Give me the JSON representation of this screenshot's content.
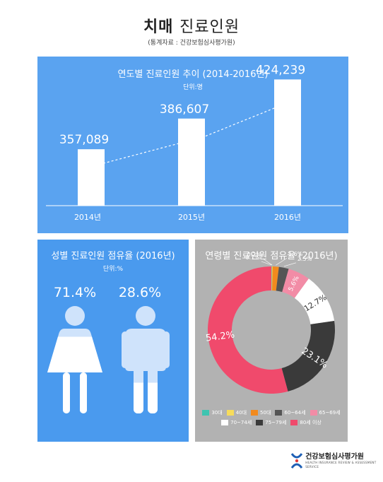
{
  "header": {
    "title_bold": "치매",
    "title_light": "진료인원",
    "source": "(통계자료 : 건강보험심사평가원)"
  },
  "chart_data": [
    {
      "type": "bar",
      "title": "연도별 진료인원 추이 (2014-2016년)",
      "unit": "단위:명",
      "categories": [
        "2014년",
        "2015년",
        "2016년"
      ],
      "values": [
        357089,
        386607,
        424239
      ],
      "value_labels": [
        "357,089",
        "386,607",
        "424,239"
      ],
      "trend_line": true,
      "grid": false
    },
    {
      "type": "pictogram",
      "title": "성별 진료인원 점유율 (2016년)",
      "unit": "단위:%",
      "categories": [
        "female",
        "male"
      ],
      "values": [
        71.4,
        28.6
      ],
      "value_labels": [
        "71.4%",
        "28.6%"
      ]
    },
    {
      "type": "pie",
      "subtype": "donut",
      "title": "연령별 진료인원 점유율 (2016년)",
      "categories": [
        "30대",
        "40대",
        "50대",
        "60~64세",
        "65~69세",
        "70~74세",
        "75~79세",
        "80세 이상"
      ],
      "values": [
        0.1,
        0.2,
        1.6,
        2.5,
        5.6,
        12.7,
        23.1,
        54.2
      ],
      "value_labels": [
        "0.1%",
        "0.2%",
        "1.6%",
        "2.5%",
        "5.6%",
        "12.7%",
        "23.1%",
        "54.2%"
      ],
      "legend_position": "bottom"
    }
  ],
  "colors": {
    "panel_top": "#5aa3f0",
    "panel_left": "#4a9aee",
    "panel_right": "#b2b2b2",
    "pie": [
      "#3ec4b0",
      "#f7dc5a",
      "#f28a1e",
      "#555555",
      "#f28ca6",
      "#ffffff",
      "#3a3a3a",
      "#f04a6c"
    ],
    "figure_light": "#cfe3fb",
    "figure_fill": "#ffffff"
  },
  "footer": {
    "logo_icon": "hira-logo-icon",
    "logo_text": "건강보험심사평가원",
    "logo_subtext": "HEALTH INSURANCE REVIEW & ASSESSMENT SERVICE"
  }
}
